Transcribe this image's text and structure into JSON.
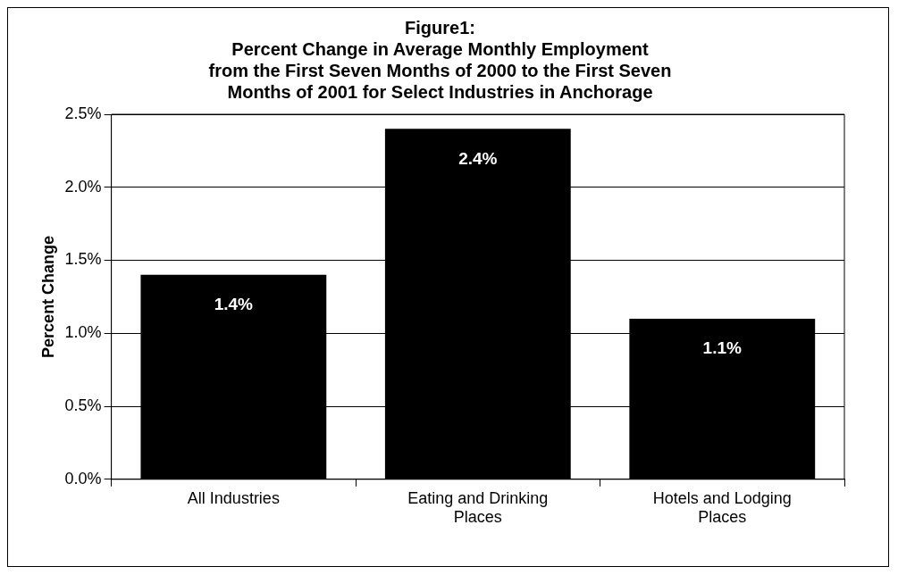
{
  "chart_data": {
    "type": "bar",
    "title": "Figure1:\nPercent Change in Average Monthly Employment\nfrom the First Seven Months of 2000 to the First Seven\nMonths of 2001 for Select Industries in Anchorage",
    "ylabel": "Percent Change",
    "categories": [
      "All Industries",
      "Eating and Drinking Places",
      "Hotels and Lodging Places"
    ],
    "values": [
      1.4,
      2.4,
      1.1
    ],
    "color": "#000000",
    "ylim": [
      0,
      2.5
    ],
    "yticks": [
      {
        "value": 0,
        "label": "0.0%"
      },
      {
        "value": 0.5,
        "label": "0.5%"
      },
      {
        "value": 1,
        "label": "1.0%"
      },
      {
        "value": 1.5,
        "label": "1.5%"
      },
      {
        "value": 2,
        "label": "2.0%"
      },
      {
        "value": 2.5,
        "label": "2.5%"
      }
    ],
    "value_labels": [
      "1.4%",
      "2.4%",
      "1.1%"
    ],
    "grid": "y",
    "legend": false
  }
}
